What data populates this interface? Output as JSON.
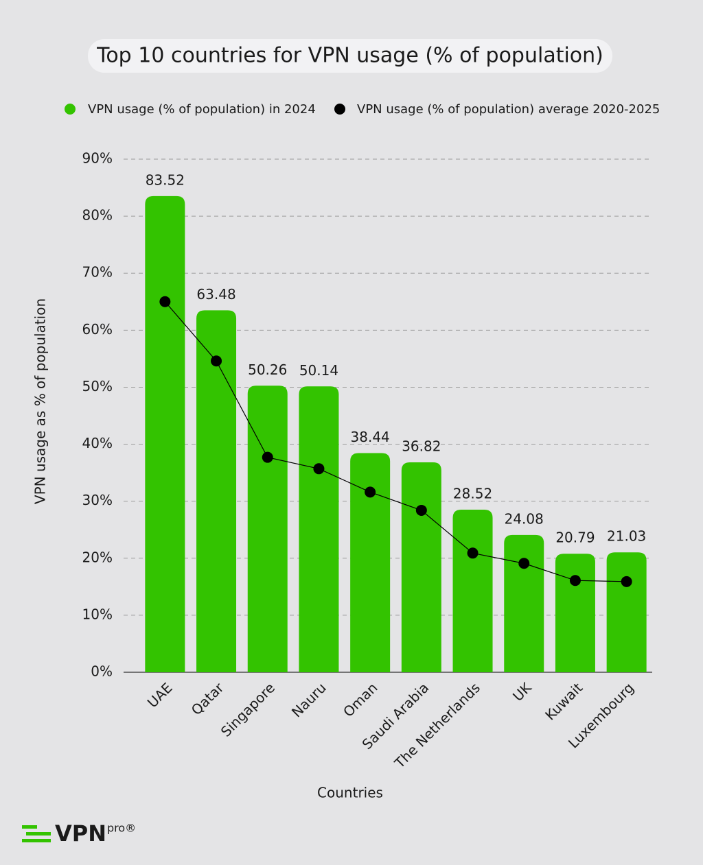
{
  "chart_data": {
    "type": "bar_line",
    "title": "Top 10 countries for VPN usage (% of population)",
    "x_label": "Countries",
    "y_label": "VPN usage as % of population",
    "brand": "VPN",
    "brand_sup": "pro®",
    "categories": [
      "UAE",
      "Qatar",
      "Singapore",
      "Nauru",
      "Oman",
      "Saudi Arabia",
      "The Netherlands",
      "UK",
      "Kuwait",
      "Luxembourg"
    ],
    "series": [
      {
        "name": "VPN usage (% of population) in 2024",
        "color": "#33c300",
        "kind": "bar",
        "values": [
          83.52,
          63.48,
          50.26,
          50.14,
          38.44,
          36.82,
          28.52,
          24.08,
          20.79,
          21.03
        ]
      },
      {
        "name": "VPN usage (% of population) average 2020-2025",
        "color": "#000000",
        "kind": "line",
        "values": [
          65,
          54.6,
          37.7,
          35.7,
          31.6,
          28.4,
          20.9,
          19.1,
          16.1,
          15.9
        ]
      }
    ],
    "ylim": [
      0,
      90
    ],
    "yticks": [
      {
        "value": 0,
        "label": "0%"
      },
      {
        "value": 10,
        "label": "10%"
      },
      {
        "value": 20,
        "label": "20%"
      },
      {
        "value": 30,
        "label": "30%"
      },
      {
        "value": 40,
        "label": "40%"
      },
      {
        "value": 50,
        "label": "50%"
      },
      {
        "value": 60,
        "label": "60%"
      },
      {
        "value": 70,
        "label": "70%"
      },
      {
        "value": 80,
        "label": "80%"
      },
      {
        "value": 90,
        "label": "90%"
      }
    ],
    "grid": true
  }
}
